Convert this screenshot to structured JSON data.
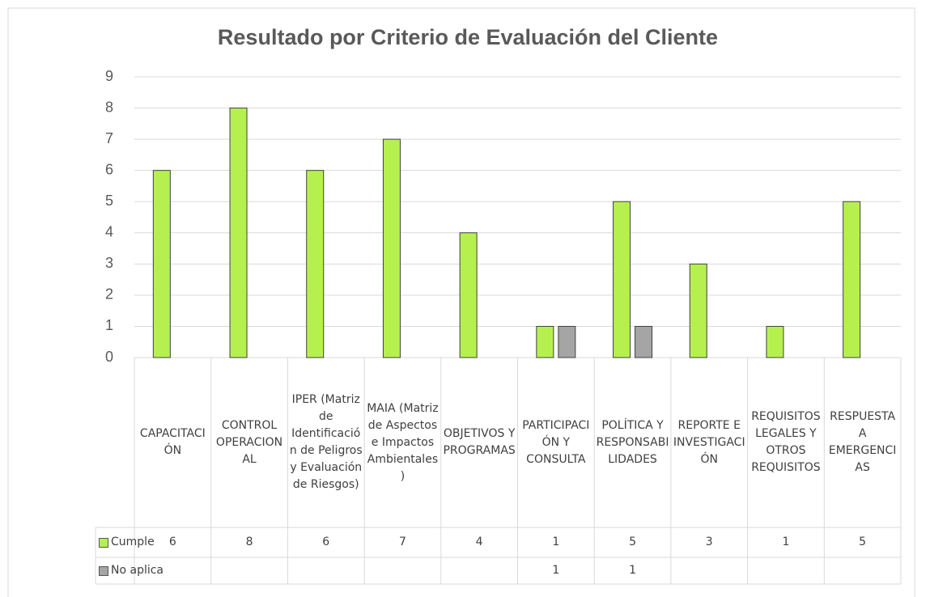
{
  "chart_data": {
    "type": "bar",
    "title": "Resultado por Criterio de Evaluación del Cliente",
    "categories": [
      "CAPACITACIÓN",
      "CONTROL OPERACIONAL",
      "IPER (Matriz de Identificación de Peligros y Evaluación de Riesgos)",
      "MAIA (Matriz de Aspectos e Impactos Ambientales)",
      "OBJETIVOS Y PROGRAMAS",
      "PARTICIPACIÓN Y CONSULTA",
      "POLÍTICA Y RESPONSABILIDADES",
      "REPORTE E INVESTIGACIÓN",
      "REQUISITOS LEGALES Y OTROS REQUISITOS",
      "RESPUESTA A EMERGENCIAS"
    ],
    "series": [
      {
        "name": "Cumple",
        "color": "#b6f04f",
        "values": [
          6,
          8,
          6,
          7,
          4,
          1,
          5,
          3,
          1,
          5
        ]
      },
      {
        "name": "No aplica",
        "color": "#a5a5a5",
        "values": [
          null,
          null,
          null,
          null,
          null,
          1,
          1,
          null,
          null,
          null
        ]
      }
    ],
    "ylim": [
      0,
      9
    ],
    "yticks": [
      0,
      1,
      2,
      3,
      4,
      5,
      6,
      7,
      8,
      9
    ],
    "grid": true,
    "data_table": true
  }
}
